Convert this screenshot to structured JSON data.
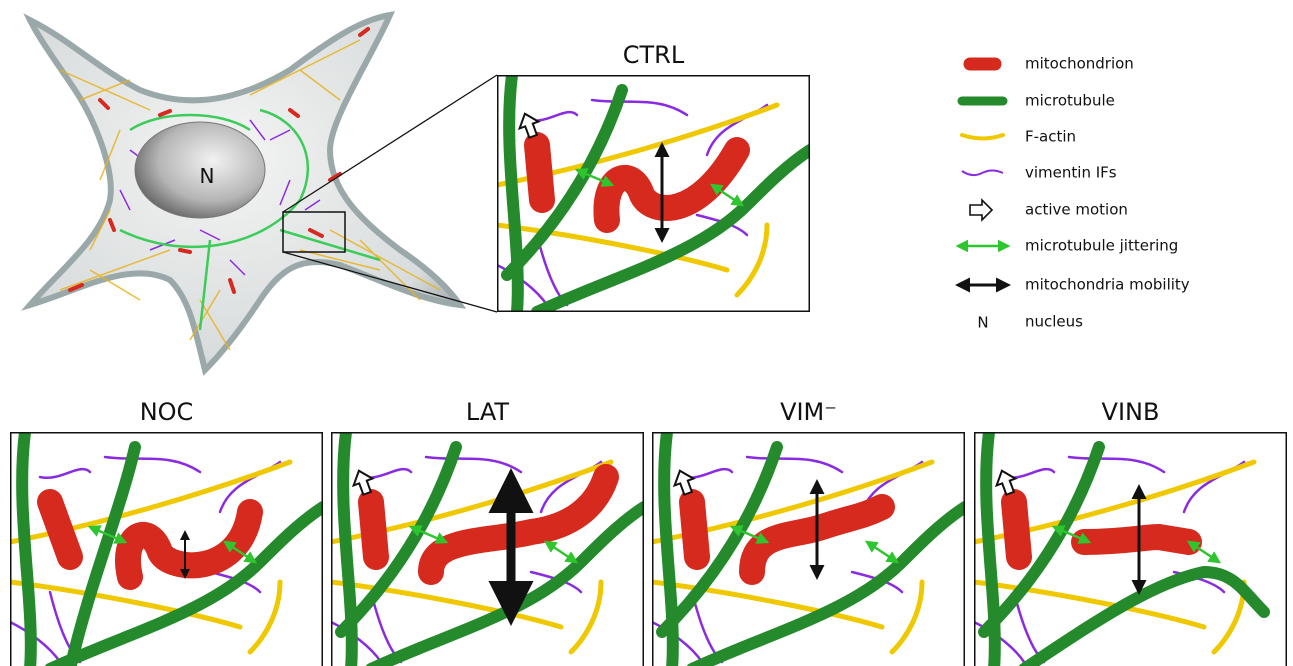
{
  "cell": {
    "nucleus_label": "N"
  },
  "panels": [
    {
      "title": "CTRL"
    },
    {
      "title": "NOC"
    },
    {
      "title": "LAT"
    },
    {
      "title": "VIM⁻"
    },
    {
      "title": "VINB"
    }
  ],
  "legend": [
    {
      "label": "mitochondrion"
    },
    {
      "label": "microtubule"
    },
    {
      "label": "F-actin"
    },
    {
      "label": "vimentin IFs"
    },
    {
      "label": "active motion"
    },
    {
      "label": "microtubule jittering"
    },
    {
      "label": "mitochondria mobility"
    },
    {
      "symbol": "N",
      "label": "nucleus"
    }
  ]
}
